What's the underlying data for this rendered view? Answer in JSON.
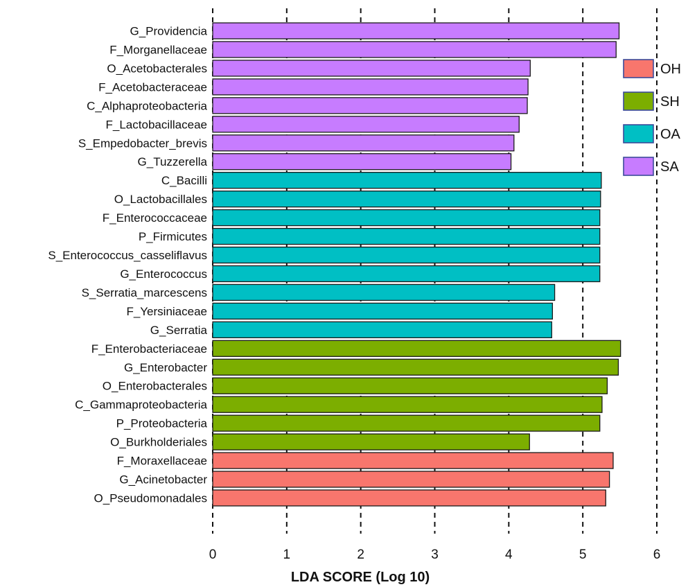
{
  "chart_data": {
    "type": "bar",
    "orientation": "horizontal",
    "title": "",
    "xlabel": "LDA SCORE (Log 10)",
    "ylabel": "",
    "xlim": [
      0,
      6
    ],
    "xticks": [
      "0",
      "1",
      "2",
      "3",
      "4",
      "5",
      "6"
    ],
    "grid": "vertical dashed lines at each x tick",
    "legend_position": "right",
    "groups": [
      {
        "name": "OH",
        "color": "#F8766D"
      },
      {
        "name": "SH",
        "color": "#7CAE00"
      },
      {
        "name": "OA",
        "color": "#00BFC4"
      },
      {
        "name": "SA",
        "color": "#C77CFF"
      }
    ],
    "bars": [
      {
        "label": "G_Providencia",
        "value": 5.49,
        "group": "SA"
      },
      {
        "label": "F_Morganellaceae",
        "value": 5.45,
        "group": "SA"
      },
      {
        "label": "O_Acetobacterales",
        "value": 4.29,
        "group": "SA"
      },
      {
        "label": "F_Acetobacteraceae",
        "value": 4.26,
        "group": "SA"
      },
      {
        "label": "C_Alphaproteobacteria",
        "value": 4.25,
        "group": "SA"
      },
      {
        "label": "F_Lactobacillaceae",
        "value": 4.14,
        "group": "SA"
      },
      {
        "label": "S_Empedobacter_brevis",
        "value": 4.07,
        "group": "SA"
      },
      {
        "label": "G_Tuzzerella",
        "value": 4.03,
        "group": "SA"
      },
      {
        "label": "C_Bacilli",
        "value": 5.25,
        "group": "OA"
      },
      {
        "label": "O_Lactobacillales",
        "value": 5.24,
        "group": "OA"
      },
      {
        "label": "F_Enterococcaceae",
        "value": 5.23,
        "group": "OA"
      },
      {
        "label": "P_Firmicutes",
        "value": 5.23,
        "group": "OA"
      },
      {
        "label": "S_Enterococcus_casseliflavus",
        "value": 5.23,
        "group": "OA"
      },
      {
        "label": "G_Enterococcus",
        "value": 5.23,
        "group": "OA"
      },
      {
        "label": "S_Serratia_marcescens",
        "value": 4.62,
        "group": "OA"
      },
      {
        "label": "F_Yersiniaceae",
        "value": 4.59,
        "group": "OA"
      },
      {
        "label": "G_Serratia",
        "value": 4.58,
        "group": "OA"
      },
      {
        "label": "F_Enterobacteriaceae",
        "value": 5.51,
        "group": "SH"
      },
      {
        "label": "G_Enterobacter",
        "value": 5.48,
        "group": "SH"
      },
      {
        "label": "O_Enterobacterales",
        "value": 5.33,
        "group": "SH"
      },
      {
        "label": "C_Gammaproteobacteria",
        "value": 5.26,
        "group": "SH"
      },
      {
        "label": "P_Proteobacteria",
        "value": 5.23,
        "group": "SH"
      },
      {
        "label": "O_Burkholderiales",
        "value": 4.28,
        "group": "SH"
      },
      {
        "label": "F_Moraxellaceae",
        "value": 5.41,
        "group": "OH"
      },
      {
        "label": "G_Acinetobacter",
        "value": 5.36,
        "group": "OH"
      },
      {
        "label": "O_Pseudomonadales",
        "value": 5.31,
        "group": "OH"
      }
    ]
  }
}
